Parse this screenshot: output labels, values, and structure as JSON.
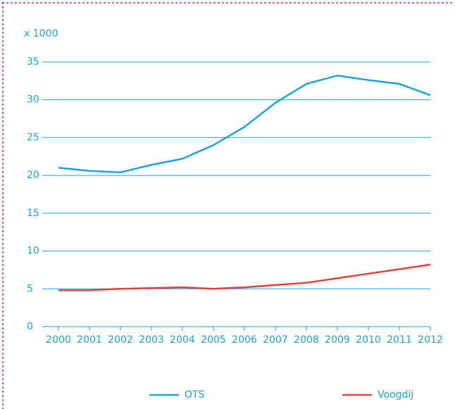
{
  "chart_data": {
    "type": "line",
    "ylabel": "x 1000",
    "categories": [
      "2000",
      "2001",
      "2002",
      "2003",
      "2004",
      "2005",
      "2006",
      "2007",
      "2008",
      "2009",
      "2010",
      "2011",
      "2012"
    ],
    "series": [
      {
        "name": "OTS",
        "color": "#1ba3dd",
        "values": [
          21.0,
          20.6,
          20.4,
          21.4,
          22.2,
          24.0,
          26.4,
          29.6,
          32.1,
          33.2,
          32.6,
          32.1,
          30.6
        ]
      },
      {
        "name": "Voogdij",
        "color": "#e2403b",
        "values": [
          4.8,
          4.8,
          5.0,
          5.1,
          5.2,
          5.0,
          5.2,
          5.5,
          5.8,
          6.4,
          7.0,
          7.6,
          8.2
        ]
      }
    ],
    "ylim": [
      0,
      35
    ],
    "yticks": [
      0,
      5,
      10,
      15,
      20,
      25,
      30,
      35
    ],
    "grid": true,
    "legend": "bottom"
  }
}
